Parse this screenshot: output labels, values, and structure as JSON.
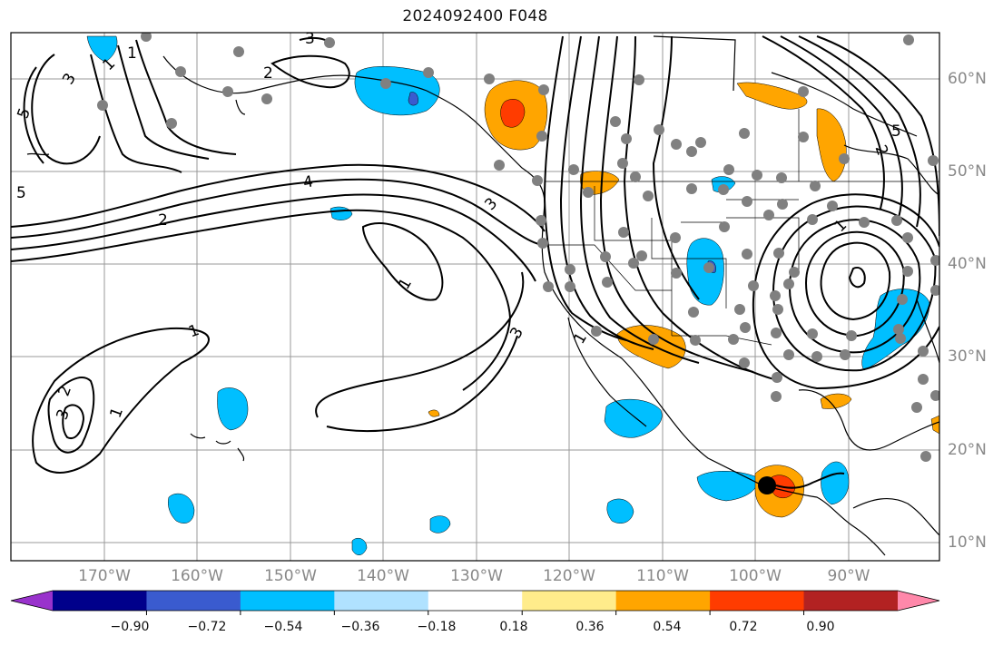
{
  "title": "2024092400 F048",
  "map": {
    "longitude_labels": [
      "170°W",
      "160°W",
      "150°W",
      "140°W",
      "130°W",
      "120°W",
      "110°W",
      "100°W",
      "90°W"
    ],
    "latitude_labels": [
      "60°N",
      "50°N",
      "40°N",
      "30°N",
      "20°N",
      "10°N"
    ],
    "contour_labels": [
      "5",
      "3",
      "4",
      "2",
      "5",
      "1",
      "3",
      "1",
      "1",
      "3",
      "2",
      "1",
      "3",
      "1",
      "2",
      "1",
      "3",
      "5",
      "2",
      "1"
    ],
    "marker": {
      "type": "storm-center",
      "lon": -98.5,
      "lat": 16.3
    }
  },
  "colorbar": {
    "ticks": [
      "−0.90",
      "−0.72",
      "−0.54",
      "−0.36",
      "−0.18",
      "0.18",
      "0.36",
      "0.54",
      "0.72",
      "0.90"
    ],
    "colors": [
      "#9932cc",
      "#00008b",
      "#3a5bcf",
      "#00bfff",
      "#b0e2ff",
      "#ffffff",
      "#ffec8b",
      "#ffa500",
      "#ff3c00",
      "#b22222",
      "#ff88aa"
    ]
  }
}
